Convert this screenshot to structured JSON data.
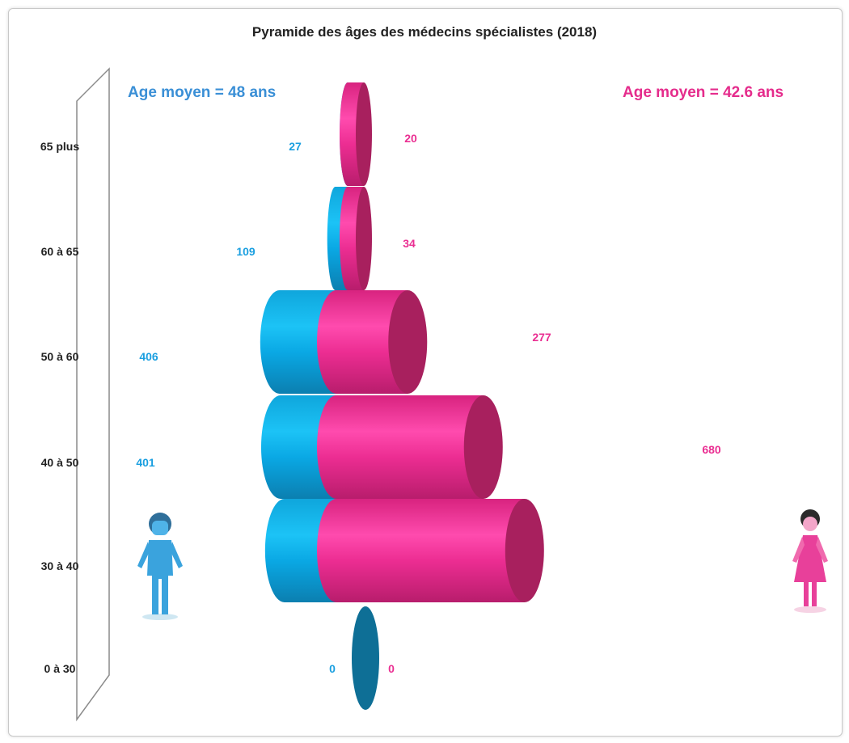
{
  "colors": {
    "male": "#00b4f0",
    "male_dark": "#0f86b8",
    "male_end": "#1aa0d8",
    "female": "#f0339a",
    "female_dark": "#c01f70",
    "female_end": "#a8205e",
    "zero_disc": "#0e6f96",
    "male_label": "#1a9fe0",
    "female_label": "#ea2f92",
    "avg_male": "#3a8fd6",
    "avg_female": "#e52c8c"
  },
  "chart_data": {
    "type": "bar",
    "title": "Pyramide des âges des médecins spécialistes (2018)",
    "categories": [
      "65 plus",
      "60 à 65",
      "50 à 60",
      "40 à 50",
      "30 à 40",
      "0 à 30"
    ],
    "series": [
      {
        "key": "male",
        "values": [
          27,
          109,
          406,
          401,
          380,
          0
        ]
      },
      {
        "key": "female",
        "values": [
          20,
          34,
          277,
          680,
          900,
          0
        ]
      }
    ],
    "labels": {
      "male": [
        "27",
        "109",
        "406",
        "401",
        "",
        "0"
      ],
      "female": [
        "20",
        "34",
        "277",
        "680",
        "",
        "0"
      ]
    },
    "annotations": {
      "male_average": "Age moyen = 48 ans",
      "female_average": "Age moyen = 42.6 ans"
    },
    "icons": {
      "male": "man-icon",
      "female": "woman-icon"
    },
    "xlabel": "",
    "ylabel": "",
    "grid": false,
    "legend": "none"
  }
}
